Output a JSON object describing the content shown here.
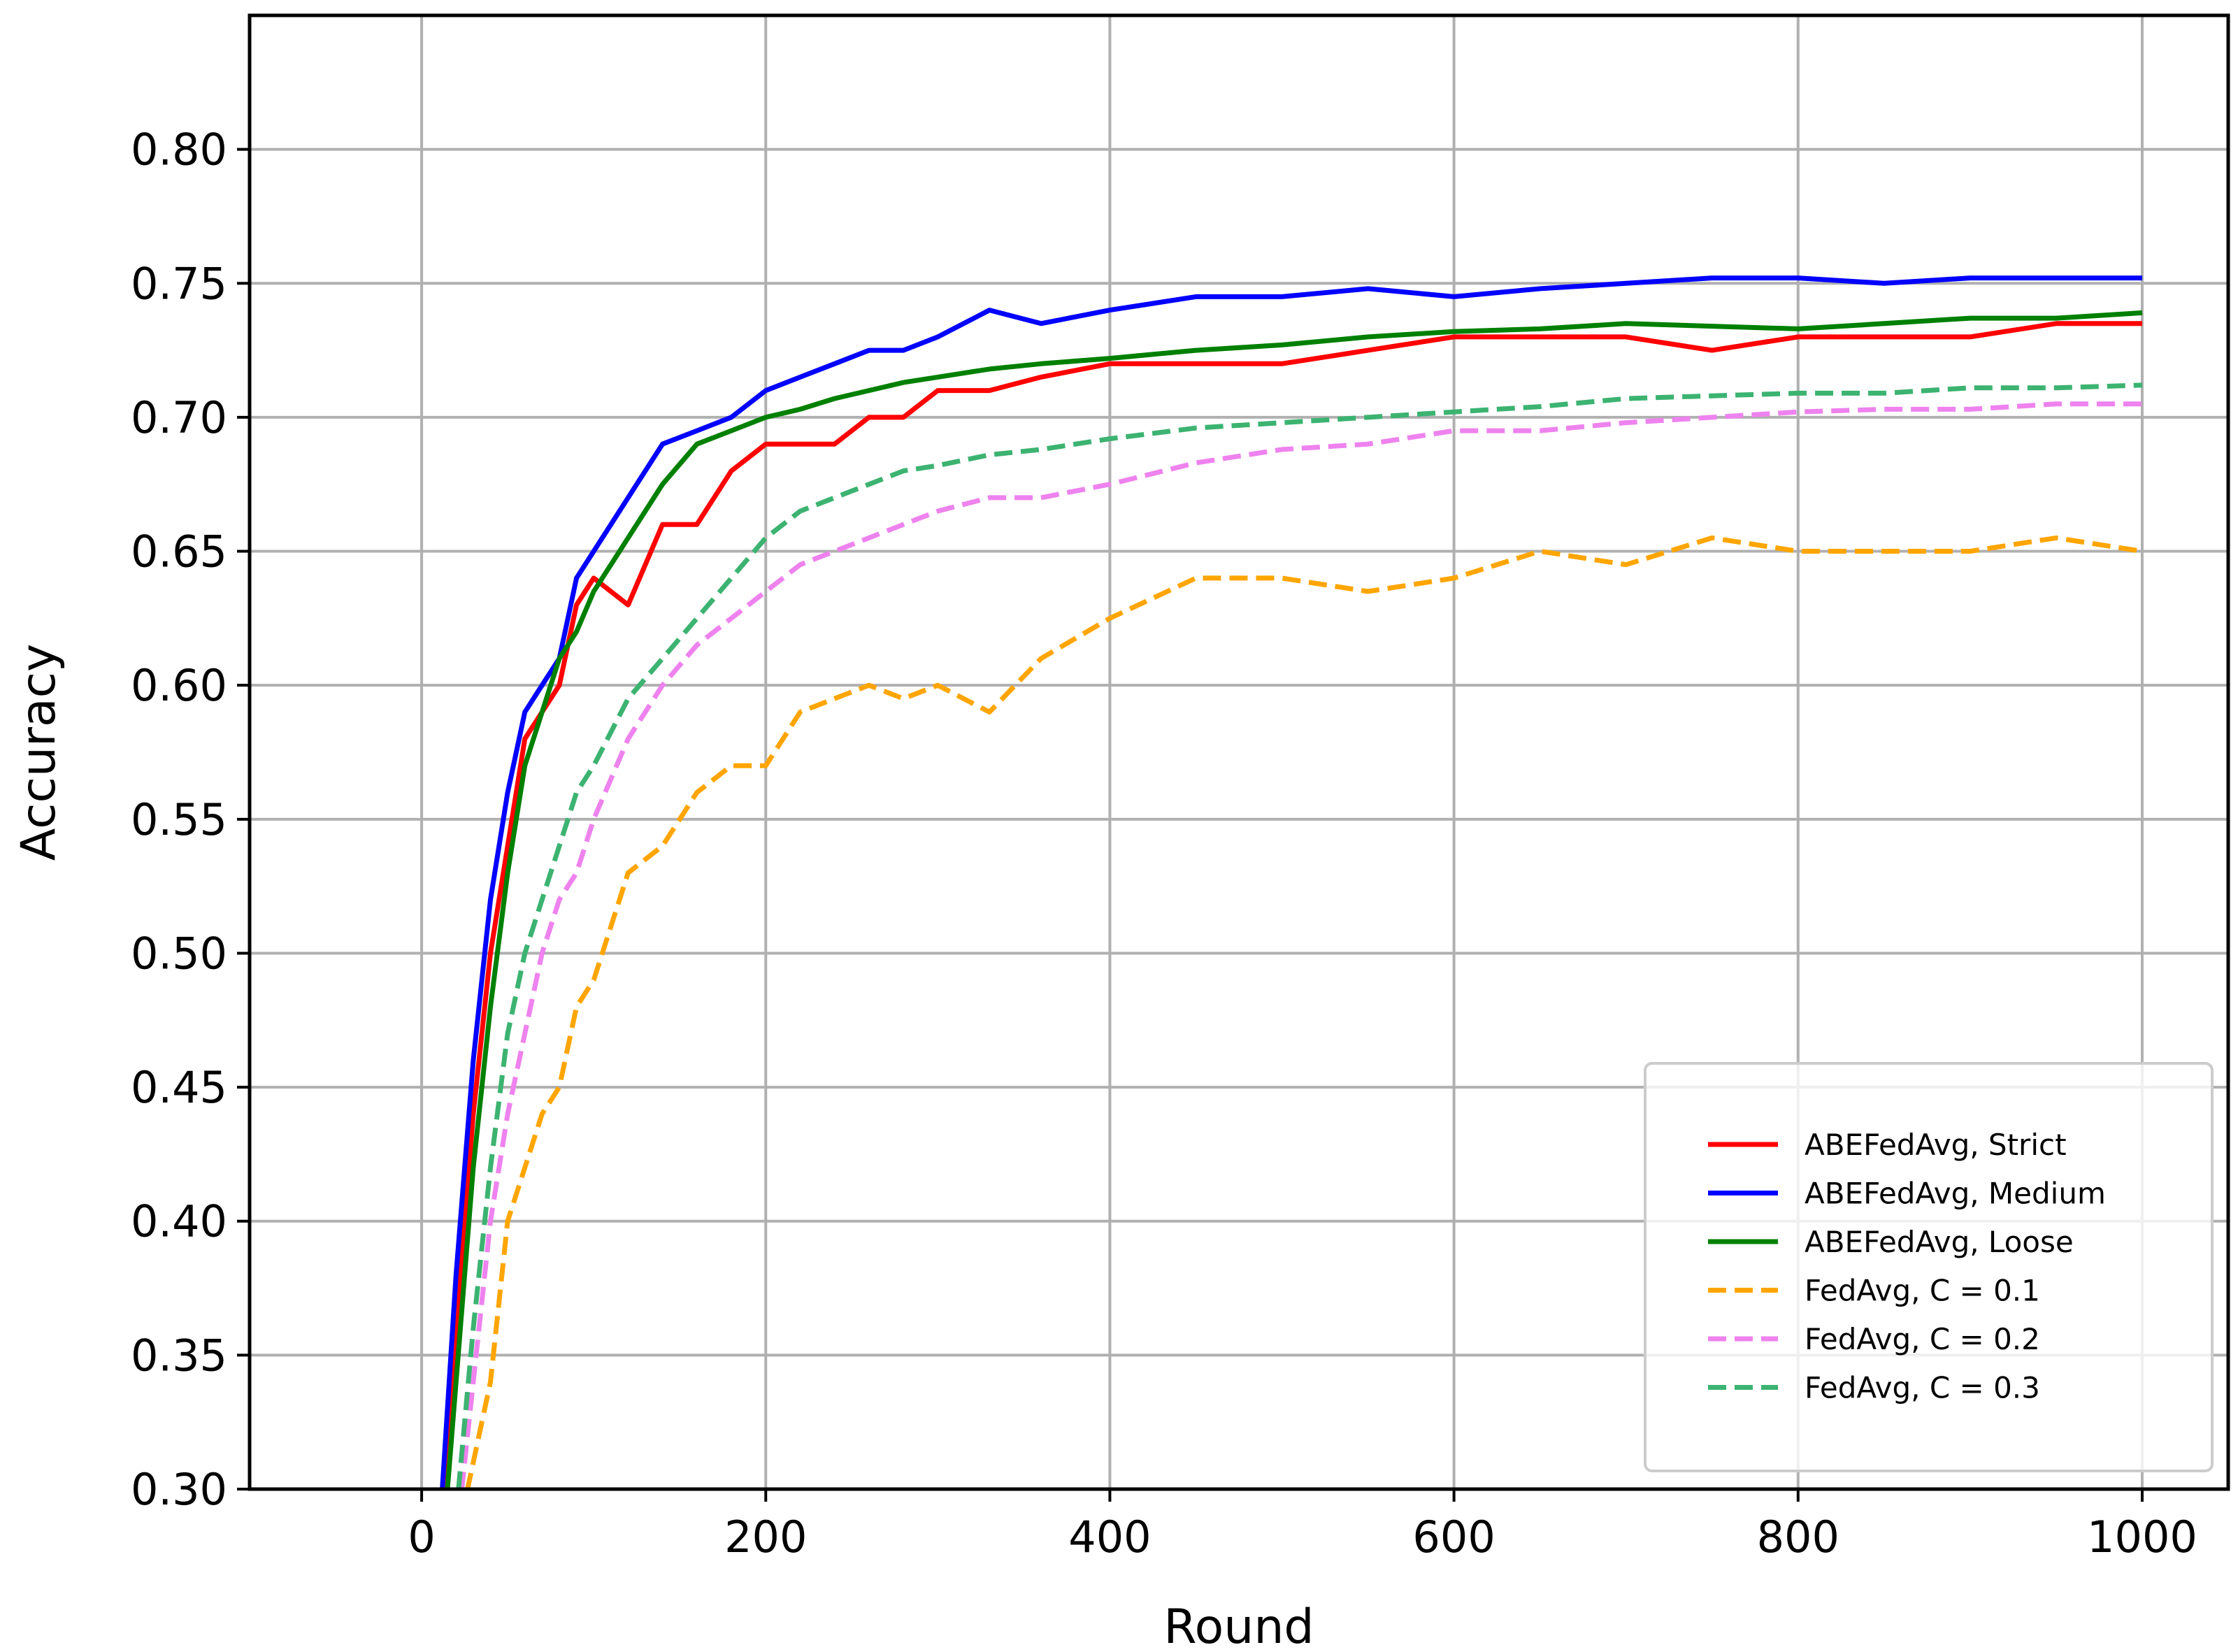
{
  "chart_data": {
    "type": "line",
    "xlabel": "Round",
    "ylabel": "Accuracy",
    "xlim": [
      -100,
      1050
    ],
    "ylim": [
      0.3,
      0.85
    ],
    "xticks": [
      0,
      200,
      400,
      600,
      800,
      1000
    ],
    "yticks": [
      0.3,
      0.35,
      0.4,
      0.45,
      0.5,
      0.55,
      0.6,
      0.65,
      0.7,
      0.75,
      0.8
    ],
    "xtick_labels": [
      "0",
      "200",
      "400",
      "600",
      "800",
      "1000"
    ],
    "ytick_labels": [
      "0.30",
      "0.35",
      "0.40",
      "0.45",
      "0.50",
      "0.55",
      "0.60",
      "0.65",
      "0.70",
      "0.75",
      "0.80"
    ],
    "grid": true,
    "legend_position": "bottom-right",
    "series": [
      {
        "name": "ABEFedAvg, Strict",
        "color": "#ff0000",
        "style": "solid",
        "x": [
          10,
          20,
          30,
          40,
          50,
          60,
          70,
          80,
          90,
          100,
          120,
          140,
          160,
          180,
          200,
          220,
          240,
          260,
          280,
          300,
          330,
          360,
          400,
          450,
          500,
          550,
          600,
          650,
          700,
          750,
          800,
          850,
          900,
          950,
          1000
        ],
        "y": [
          0.27,
          0.36,
          0.44,
          0.5,
          0.54,
          0.58,
          0.59,
          0.6,
          0.63,
          0.64,
          0.63,
          0.66,
          0.66,
          0.68,
          0.69,
          0.69,
          0.69,
          0.7,
          0.7,
          0.71,
          0.71,
          0.715,
          0.72,
          0.72,
          0.72,
          0.725,
          0.73,
          0.73,
          0.73,
          0.725,
          0.73,
          0.73,
          0.73,
          0.735,
          0.735
        ]
      },
      {
        "name": "ABEFedAvg, Medium",
        "color": "#0000ff",
        "style": "solid",
        "x": [
          10,
          20,
          30,
          40,
          50,
          60,
          70,
          80,
          90,
          100,
          120,
          140,
          160,
          180,
          200,
          220,
          240,
          260,
          280,
          300,
          330,
          360,
          400,
          450,
          500,
          550,
          600,
          650,
          700,
          750,
          800,
          850,
          900,
          950,
          1000
        ],
        "y": [
          0.28,
          0.38,
          0.46,
          0.52,
          0.56,
          0.59,
          0.6,
          0.61,
          0.64,
          0.65,
          0.67,
          0.69,
          0.695,
          0.7,
          0.71,
          0.715,
          0.72,
          0.725,
          0.725,
          0.73,
          0.74,
          0.735,
          0.74,
          0.745,
          0.745,
          0.748,
          0.745,
          0.748,
          0.75,
          0.752,
          0.752,
          0.75,
          0.752,
          0.752,
          0.752
        ]
      },
      {
        "name": "ABEFedAvg, Loose",
        "color": "#008000",
        "style": "solid",
        "x": [
          10,
          20,
          30,
          40,
          50,
          60,
          70,
          80,
          90,
          100,
          120,
          140,
          160,
          180,
          200,
          220,
          240,
          260,
          280,
          300,
          330,
          360,
          400,
          450,
          500,
          550,
          600,
          650,
          700,
          750,
          800,
          850,
          900,
          950,
          1000
        ],
        "y": [
          0.26,
          0.34,
          0.42,
          0.48,
          0.53,
          0.57,
          0.59,
          0.61,
          0.62,
          0.635,
          0.655,
          0.675,
          0.69,
          0.695,
          0.7,
          0.703,
          0.707,
          0.71,
          0.713,
          0.715,
          0.718,
          0.72,
          0.722,
          0.725,
          0.727,
          0.73,
          0.732,
          0.733,
          0.735,
          0.734,
          0.733,
          0.735,
          0.737,
          0.737,
          0.739
        ]
      },
      {
        "name": "FedAvg, C = 0.1",
        "color": "#ffa500",
        "style": "dashed",
        "x": [
          20,
          30,
          40,
          50,
          60,
          70,
          80,
          90,
          100,
          120,
          140,
          160,
          180,
          200,
          220,
          240,
          260,
          280,
          300,
          330,
          360,
          400,
          450,
          500,
          550,
          600,
          650,
          700,
          750,
          800,
          850,
          900,
          950,
          1000
        ],
        "y": [
          0.28,
          0.31,
          0.34,
          0.4,
          0.42,
          0.44,
          0.45,
          0.48,
          0.49,
          0.53,
          0.54,
          0.56,
          0.57,
          0.57,
          0.59,
          0.595,
          0.6,
          0.595,
          0.6,
          0.59,
          0.61,
          0.625,
          0.64,
          0.64,
          0.635,
          0.64,
          0.65,
          0.645,
          0.655,
          0.65,
          0.65,
          0.65,
          0.655,
          0.65
        ]
      },
      {
        "name": "FedAvg, C = 0.2",
        "color": "#ee82ee",
        "style": "dashed",
        "x": [
          20,
          30,
          40,
          50,
          60,
          70,
          80,
          90,
          100,
          120,
          140,
          160,
          180,
          200,
          220,
          240,
          260,
          280,
          300,
          330,
          360,
          400,
          450,
          500,
          550,
          600,
          650,
          700,
          750,
          800,
          850,
          900,
          950,
          1000
        ],
        "y": [
          0.28,
          0.34,
          0.4,
          0.44,
          0.47,
          0.5,
          0.52,
          0.53,
          0.55,
          0.58,
          0.6,
          0.615,
          0.625,
          0.635,
          0.645,
          0.65,
          0.655,
          0.66,
          0.665,
          0.67,
          0.67,
          0.675,
          0.683,
          0.688,
          0.69,
          0.695,
          0.695,
          0.698,
          0.7,
          0.702,
          0.703,
          0.703,
          0.705,
          0.705
        ]
      },
      {
        "name": "FedAvg, C = 0.3",
        "color": "#3cb371",
        "style": "dashed",
        "x": [
          20,
          30,
          40,
          50,
          60,
          70,
          80,
          90,
          100,
          120,
          140,
          160,
          180,
          200,
          220,
          240,
          260,
          280,
          300,
          330,
          360,
          400,
          450,
          500,
          550,
          600,
          650,
          700,
          750,
          800,
          850,
          900,
          950,
          1000
        ],
        "y": [
          0.29,
          0.36,
          0.42,
          0.47,
          0.5,
          0.52,
          0.54,
          0.56,
          0.57,
          0.595,
          0.61,
          0.625,
          0.64,
          0.655,
          0.665,
          0.67,
          0.675,
          0.68,
          0.682,
          0.686,
          0.688,
          0.692,
          0.696,
          0.698,
          0.7,
          0.702,
          0.704,
          0.707,
          0.708,
          0.709,
          0.709,
          0.711,
          0.711,
          0.712
        ]
      }
    ]
  }
}
